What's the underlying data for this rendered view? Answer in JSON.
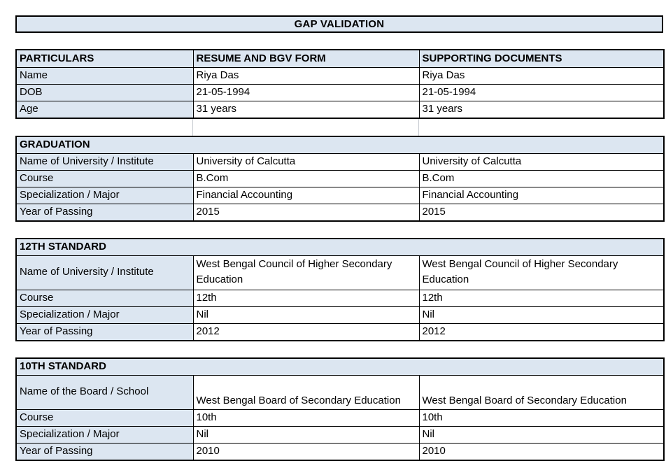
{
  "title": "GAP VALIDATION",
  "colors": {
    "header_fill": "#dce6f1",
    "border": "#000000",
    "gridline": "#c9cdd2"
  },
  "table_headers": [
    "PARTICULARS",
    "RESUME AND BGV FORM",
    "SUPPORTING DOCUMENTS"
  ],
  "particulars": [
    {
      "label": "Name",
      "resume": "Riya Das",
      "supporting": "Riya Das"
    },
    {
      "label": "DOB",
      "resume": "21-05-1994",
      "supporting": "21-05-1994"
    },
    {
      "label": "Age",
      "resume": "31 years",
      "supporting": "31 years"
    }
  ],
  "sections": [
    {
      "heading": "GRADUATION",
      "rows": [
        {
          "label": "Name of University / Institute",
          "resume": "University of Calcutta",
          "supporting": "University of Calcutta"
        },
        {
          "label": "Course",
          "resume": "B.Com",
          "supporting": "B.Com"
        },
        {
          "label": "Specialization / Major",
          "resume": "Financial Accounting",
          "supporting": "Financial Accounting"
        },
        {
          "label": "Year of Passing",
          "resume": "2015",
          "supporting": "2015"
        }
      ]
    },
    {
      "heading": "12TH STANDARD",
      "rows": [
        {
          "label": "Name of University / Institute",
          "resume": "West Bengal Council of Higher Secondary Education",
          "supporting": "West Bengal Council of Higher Secondary Education"
        },
        {
          "label": "Course",
          "resume": "12th",
          "supporting": "12th"
        },
        {
          "label": "Specialization / Major",
          "resume": "Nil",
          "supporting": "Nil"
        },
        {
          "label": "Year of Passing",
          "resume": "2012",
          "supporting": "2012"
        }
      ]
    },
    {
      "heading": "10TH STANDARD",
      "rows": [
        {
          "label": "Name of the Board / School",
          "resume": "West Bengal Board of Secondary Education",
          "supporting": "West Bengal Board of Secondary Education"
        },
        {
          "label": "Course",
          "resume": "10th",
          "supporting": "10th"
        },
        {
          "label": "Specialization / Major",
          "resume": "Nil",
          "supporting": "Nil"
        },
        {
          "label": "Year of Passing",
          "resume": "2010",
          "supporting": "2010"
        }
      ]
    }
  ]
}
